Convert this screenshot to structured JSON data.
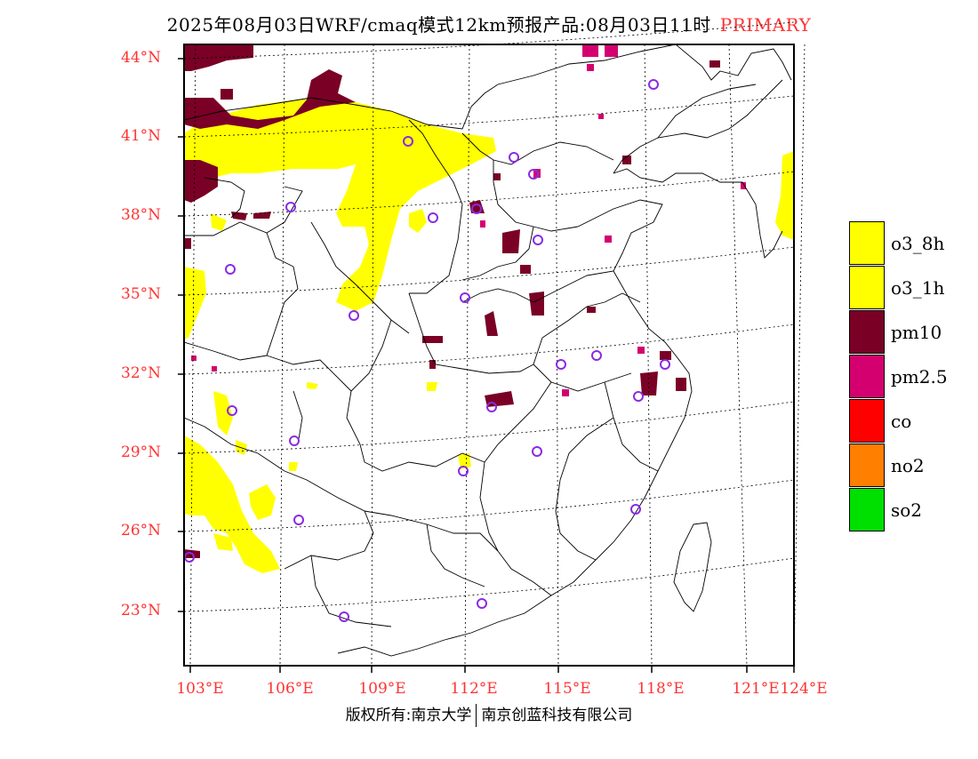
{
  "header": {
    "title": "2025年08月03日WRF/cmaq模式12km预报产品:08月03日11时",
    "tag": "PRIMARY"
  },
  "map": {
    "lat_labels": [
      "44°N",
      "41°N",
      "38°N",
      "35°N",
      "32°N",
      "29°N",
      "26°N",
      "23°N"
    ],
    "lon_labels": [
      "103°E",
      "106°E",
      "109°E",
      "112°E",
      "115°E",
      "118°E",
      "121°E",
      "124°E"
    ]
  },
  "legend": {
    "items": [
      {
        "label": "o3_8h",
        "color": "#ffff00"
      },
      {
        "label": "o3_1h",
        "color": "#ffff00"
      },
      {
        "label": "pm10",
        "color": "#7a0026"
      },
      {
        "label": "pm2.5",
        "color": "#d4006f"
      },
      {
        "label": "co",
        "color": "#ff0000"
      },
      {
        "label": "no2",
        "color": "#ff7f00"
      },
      {
        "label": "so2",
        "color": "#00e000"
      }
    ]
  },
  "footer": {
    "left": "版权所有:南京大学",
    "right": "南京创蓝科技有限公司"
  },
  "colors": {
    "label_red": "#ff3333",
    "site_marker": "#8a2be2"
  }
}
